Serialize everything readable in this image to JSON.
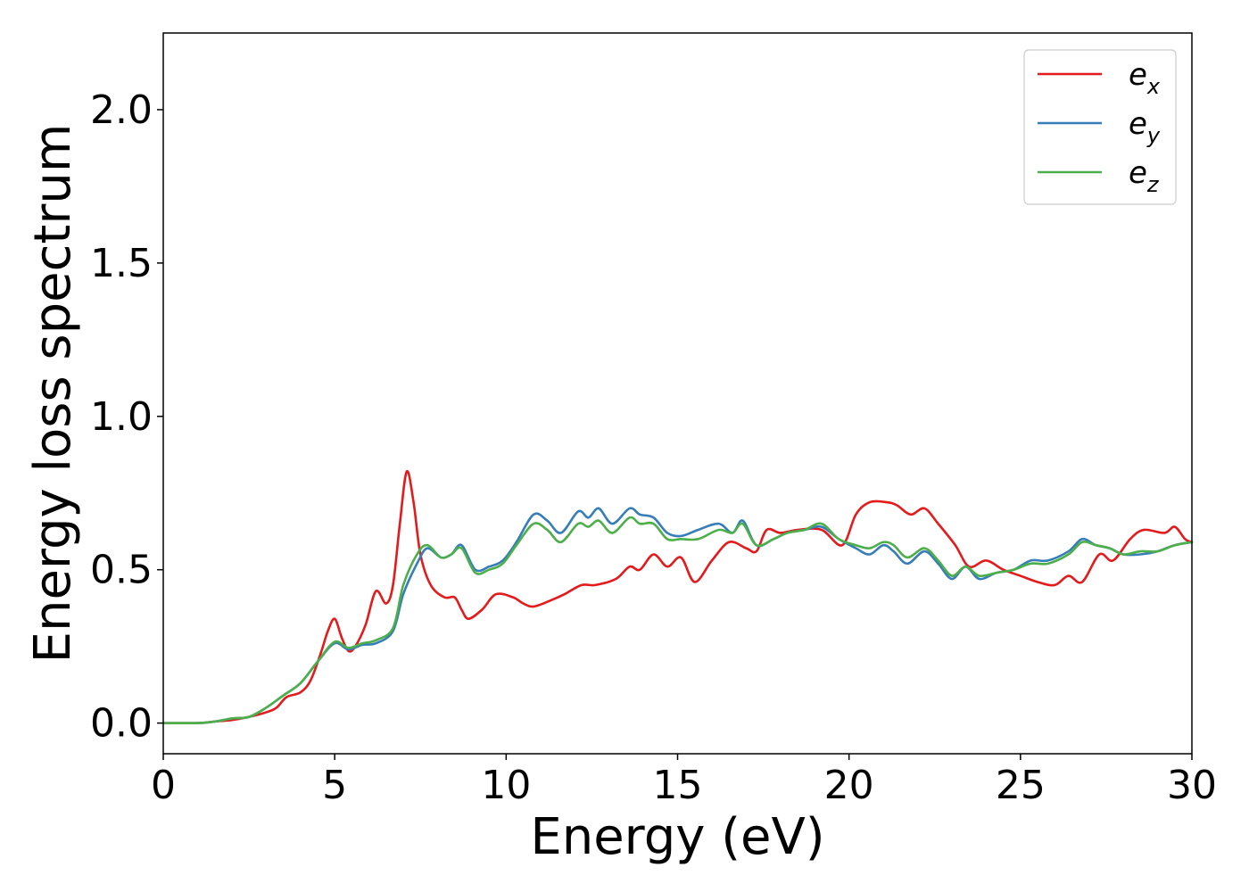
{
  "chart_data": {
    "type": "line",
    "xlabel": "Energy (eV)",
    "ylabel": "Energy loss spectrum",
    "xlim": [
      0,
      30
    ],
    "ylim": [
      -0.1,
      2.25
    ],
    "xticks": [
      0,
      5,
      10,
      15,
      20,
      25,
      30
    ],
    "xtick_labels": [
      "0",
      "5",
      "10",
      "15",
      "20",
      "25",
      "30"
    ],
    "yticks": [
      0.0,
      0.5,
      1.0,
      1.5,
      2.0
    ],
    "ytick_labels": [
      "0.0",
      "0.5",
      "1.0",
      "1.5",
      "2.0"
    ],
    "grid": false,
    "legend_position": "top-right",
    "series": [
      {
        "name": "e_x",
        "label_base": "e",
        "label_sub": "x",
        "color": "#e41a1c",
        "points": [
          [
            0,
            0
          ],
          [
            1,
            0.0
          ],
          [
            1.5,
            0.005
          ],
          [
            2,
            0.01
          ],
          [
            2.5,
            0.02
          ],
          [
            3,
            0.035
          ],
          [
            3.3,
            0.05
          ],
          [
            3.6,
            0.085
          ],
          [
            4,
            0.1
          ],
          [
            4.3,
            0.14
          ],
          [
            4.6,
            0.23
          ],
          [
            4.8,
            0.3
          ],
          [
            5.0,
            0.34
          ],
          [
            5.2,
            0.28
          ],
          [
            5.4,
            0.235
          ],
          [
            5.6,
            0.25
          ],
          [
            5.9,
            0.32
          ],
          [
            6.2,
            0.43
          ],
          [
            6.5,
            0.39
          ],
          [
            6.7,
            0.45
          ],
          [
            6.9,
            0.65
          ],
          [
            7.1,
            0.82
          ],
          [
            7.3,
            0.72
          ],
          [
            7.5,
            0.55
          ],
          [
            7.8,
            0.45
          ],
          [
            8.2,
            0.41
          ],
          [
            8.5,
            0.41
          ],
          [
            8.7,
            0.37
          ],
          [
            8.9,
            0.34
          ],
          [
            9.3,
            0.37
          ],
          [
            9.7,
            0.42
          ],
          [
            10.2,
            0.41
          ],
          [
            10.5,
            0.39
          ],
          [
            10.8,
            0.38
          ],
          [
            11.3,
            0.4
          ],
          [
            11.7,
            0.42
          ],
          [
            12.2,
            0.45
          ],
          [
            12.6,
            0.45
          ],
          [
            13.2,
            0.47
          ],
          [
            13.6,
            0.51
          ],
          [
            13.9,
            0.5
          ],
          [
            14.3,
            0.55
          ],
          [
            14.7,
            0.51
          ],
          [
            15.1,
            0.54
          ],
          [
            15.5,
            0.46
          ],
          [
            16,
            0.53
          ],
          [
            16.5,
            0.59
          ],
          [
            17,
            0.57
          ],
          [
            17.3,
            0.56
          ],
          [
            17.6,
            0.63
          ],
          [
            18,
            0.62
          ],
          [
            18.5,
            0.63
          ],
          [
            19.2,
            0.63
          ],
          [
            19.8,
            0.58
          ],
          [
            20.2,
            0.68
          ],
          [
            20.6,
            0.72
          ],
          [
            21.1,
            0.72
          ],
          [
            21.4,
            0.71
          ],
          [
            21.8,
            0.68
          ],
          [
            22.2,
            0.7
          ],
          [
            22.6,
            0.65
          ],
          [
            23.1,
            0.58
          ],
          [
            23.5,
            0.51
          ],
          [
            24,
            0.53
          ],
          [
            24.5,
            0.5
          ],
          [
            25,
            0.48
          ],
          [
            25.5,
            0.46
          ],
          [
            26,
            0.45
          ],
          [
            26.4,
            0.48
          ],
          [
            26.8,
            0.46
          ],
          [
            27.3,
            0.55
          ],
          [
            27.7,
            0.53
          ],
          [
            28.2,
            0.6
          ],
          [
            28.6,
            0.63
          ],
          [
            29.2,
            0.62
          ],
          [
            29.5,
            0.64
          ],
          [
            29.8,
            0.6
          ],
          [
            30,
            0.59
          ]
        ]
      },
      {
        "name": "e_y",
        "label_base": "e",
        "label_sub": "y",
        "color": "#377eb8",
        "points": [
          [
            0,
            0
          ],
          [
            1,
            0.0
          ],
          [
            1.5,
            0.005
          ],
          [
            2,
            0.015
          ],
          [
            2.5,
            0.02
          ],
          [
            3,
            0.05
          ],
          [
            3.5,
            0.09
          ],
          [
            4,
            0.13
          ],
          [
            4.5,
            0.2
          ],
          [
            5.0,
            0.26
          ],
          [
            5.4,
            0.24
          ],
          [
            5.8,
            0.255
          ],
          [
            6.2,
            0.26
          ],
          [
            6.7,
            0.3
          ],
          [
            7.0,
            0.42
          ],
          [
            7.4,
            0.52
          ],
          [
            7.7,
            0.57
          ],
          [
            8.1,
            0.54
          ],
          [
            8.4,
            0.55
          ],
          [
            8.7,
            0.58
          ],
          [
            9.1,
            0.5
          ],
          [
            9.5,
            0.51
          ],
          [
            9.9,
            0.53
          ],
          [
            10.3,
            0.59
          ],
          [
            10.8,
            0.68
          ],
          [
            11.2,
            0.66
          ],
          [
            11.6,
            0.62
          ],
          [
            12.1,
            0.69
          ],
          [
            12.4,
            0.67
          ],
          [
            12.7,
            0.7
          ],
          [
            13.1,
            0.65
          ],
          [
            13.6,
            0.7
          ],
          [
            13.9,
            0.68
          ],
          [
            14.3,
            0.67
          ],
          [
            14.7,
            0.62
          ],
          [
            15.1,
            0.61
          ],
          [
            15.6,
            0.63
          ],
          [
            16.2,
            0.65
          ],
          [
            16.6,
            0.62
          ],
          [
            16.9,
            0.66
          ],
          [
            17.3,
            0.58
          ],
          [
            17.8,
            0.6
          ],
          [
            18.2,
            0.62
          ],
          [
            18.7,
            0.63
          ],
          [
            19.2,
            0.64
          ],
          [
            19.7,
            0.6
          ],
          [
            20.2,
            0.57
          ],
          [
            20.6,
            0.55
          ],
          [
            21.0,
            0.58
          ],
          [
            21.3,
            0.56
          ],
          [
            21.7,
            0.52
          ],
          [
            22.2,
            0.56
          ],
          [
            22.6,
            0.52
          ],
          [
            23.0,
            0.47
          ],
          [
            23.4,
            0.51
          ],
          [
            23.8,
            0.47
          ],
          [
            24.3,
            0.49
          ],
          [
            24.8,
            0.5
          ],
          [
            25.3,
            0.53
          ],
          [
            25.8,
            0.53
          ],
          [
            26.4,
            0.56
          ],
          [
            26.8,
            0.6
          ],
          [
            27.2,
            0.58
          ],
          [
            27.6,
            0.57
          ],
          [
            28.0,
            0.55
          ],
          [
            28.5,
            0.55
          ],
          [
            29.0,
            0.56
          ],
          [
            29.5,
            0.58
          ],
          [
            30,
            0.59
          ]
        ]
      },
      {
        "name": "e_z",
        "label_base": "e",
        "label_sub": "z",
        "color": "#4daf4a",
        "points": [
          [
            0,
            0
          ],
          [
            1,
            0.0
          ],
          [
            1.5,
            0.005
          ],
          [
            2,
            0.015
          ],
          [
            2.5,
            0.02
          ],
          [
            3,
            0.05
          ],
          [
            3.5,
            0.09
          ],
          [
            4,
            0.13
          ],
          [
            4.5,
            0.2
          ],
          [
            5.0,
            0.265
          ],
          [
            5.4,
            0.245
          ],
          [
            5.8,
            0.26
          ],
          [
            6.2,
            0.27
          ],
          [
            6.7,
            0.31
          ],
          [
            7.0,
            0.45
          ],
          [
            7.4,
            0.55
          ],
          [
            7.7,
            0.58
          ],
          [
            8.1,
            0.54
          ],
          [
            8.4,
            0.55
          ],
          [
            8.7,
            0.57
          ],
          [
            9.1,
            0.49
          ],
          [
            9.5,
            0.5
          ],
          [
            9.9,
            0.52
          ],
          [
            10.3,
            0.58
          ],
          [
            10.8,
            0.65
          ],
          [
            11.2,
            0.63
          ],
          [
            11.6,
            0.59
          ],
          [
            12.1,
            0.65
          ],
          [
            12.4,
            0.64
          ],
          [
            12.7,
            0.66
          ],
          [
            13.1,
            0.62
          ],
          [
            13.6,
            0.67
          ],
          [
            13.9,
            0.65
          ],
          [
            14.3,
            0.65
          ],
          [
            14.7,
            0.6
          ],
          [
            15.1,
            0.6
          ],
          [
            15.6,
            0.6
          ],
          [
            16.2,
            0.63
          ],
          [
            16.6,
            0.62
          ],
          [
            16.9,
            0.65
          ],
          [
            17.3,
            0.58
          ],
          [
            17.8,
            0.6
          ],
          [
            18.2,
            0.62
          ],
          [
            18.7,
            0.63
          ],
          [
            19.2,
            0.65
          ],
          [
            19.7,
            0.6
          ],
          [
            20.2,
            0.58
          ],
          [
            20.6,
            0.57
          ],
          [
            21.0,
            0.59
          ],
          [
            21.3,
            0.58
          ],
          [
            21.7,
            0.54
          ],
          [
            22.2,
            0.57
          ],
          [
            22.6,
            0.53
          ],
          [
            23.0,
            0.48
          ],
          [
            23.4,
            0.51
          ],
          [
            23.8,
            0.48
          ],
          [
            24.3,
            0.49
          ],
          [
            24.8,
            0.5
          ],
          [
            25.3,
            0.52
          ],
          [
            25.8,
            0.52
          ],
          [
            26.4,
            0.55
          ],
          [
            26.8,
            0.59
          ],
          [
            27.2,
            0.58
          ],
          [
            27.6,
            0.57
          ],
          [
            28.0,
            0.55
          ],
          [
            28.5,
            0.56
          ],
          [
            29.0,
            0.56
          ],
          [
            29.5,
            0.58
          ],
          [
            30,
            0.59
          ]
        ]
      }
    ]
  }
}
